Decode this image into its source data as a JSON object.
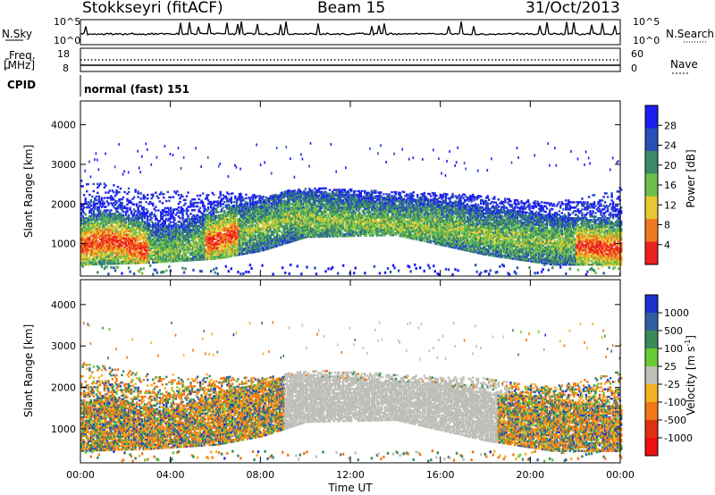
{
  "header": {
    "station": "Stokkseyri (fitACF)",
    "beam": "Beam 15",
    "date": "31/Oct/2013"
  },
  "strip_panels": {
    "nsky_label": "N.Sky",
    "nsearch_label": "N.Search",
    "nsky_ticks": [
      "10^5",
      "10^0"
    ],
    "freq_label_top": "Freq.",
    "freq_label_bottom": "[MHz]",
    "freq_ticks": [
      "18",
      "8"
    ],
    "nave_label": "Nave",
    "nave_ticks": [
      "60",
      "0"
    ],
    "cpid_label": "CPID",
    "cpid_value": "normal (fast) 151"
  },
  "chart_data": [
    {
      "type": "heatmap",
      "name": "power",
      "ylabel": "Slant Range [km]",
      "xlabel": "",
      "ylim": [
        180,
        4600
      ],
      "yticks": [
        1000,
        2000,
        3000,
        4000
      ],
      "colorbar_label": "Power [dB]",
      "colorbar_ticks": [
        4,
        8,
        12,
        16,
        20,
        24,
        28
      ],
      "colorbar_colors": [
        "#1d1df5",
        "#2850b8",
        "#3a8a6a",
        "#6cc04a",
        "#e6c830",
        "#f07820",
        "#ee2020"
      ],
      "scatter_band": [
        {
          "t": 0,
          "lo": 450,
          "hi": 2600
        },
        {
          "t": 3,
          "lo": 500,
          "hi": 2300
        },
        {
          "t": 6,
          "lo": 600,
          "hi": 2300
        },
        {
          "t": 8,
          "lo": 800,
          "hi": 2200
        },
        {
          "t": 10,
          "lo": 1150,
          "hi": 2400
        },
        {
          "t": 14,
          "lo": 1200,
          "hi": 2300
        },
        {
          "t": 18,
          "lo": 700,
          "hi": 2200
        },
        {
          "t": 21,
          "lo": 450,
          "hi": 2000
        },
        {
          "t": 24,
          "lo": 450,
          "hi": 2400
        }
      ]
    },
    {
      "type": "heatmap",
      "name": "velocity",
      "ylabel": "Slant Range [km]",
      "xlabel": "Time UT",
      "ylim": [
        180,
        4600
      ],
      "yticks": [
        1000,
        2000,
        3000,
        4000
      ],
      "colorbar_label": "Velocity [m s",
      "colorbar_label_sup": "-1",
      "colorbar_label_end": "]",
      "colorbar_ticks": [
        1000,
        500,
        100,
        25,
        -25,
        -100,
        -500,
        -1000
      ],
      "colorbar_colors": [
        "#1d30d0",
        "#3060a0",
        "#3a8a5a",
        "#66cc33",
        "#bfbfb8",
        "#f5b020",
        "#f07818",
        "#e03010",
        "#ee1010"
      ],
      "ground_scatter_color": "#bfbfb8"
    }
  ],
  "time_axis": {
    "label": "Time UT",
    "ticks": [
      "00:00",
      "04:00",
      "08:00",
      "12:00",
      "16:00",
      "20:00",
      "00:00"
    ]
  }
}
